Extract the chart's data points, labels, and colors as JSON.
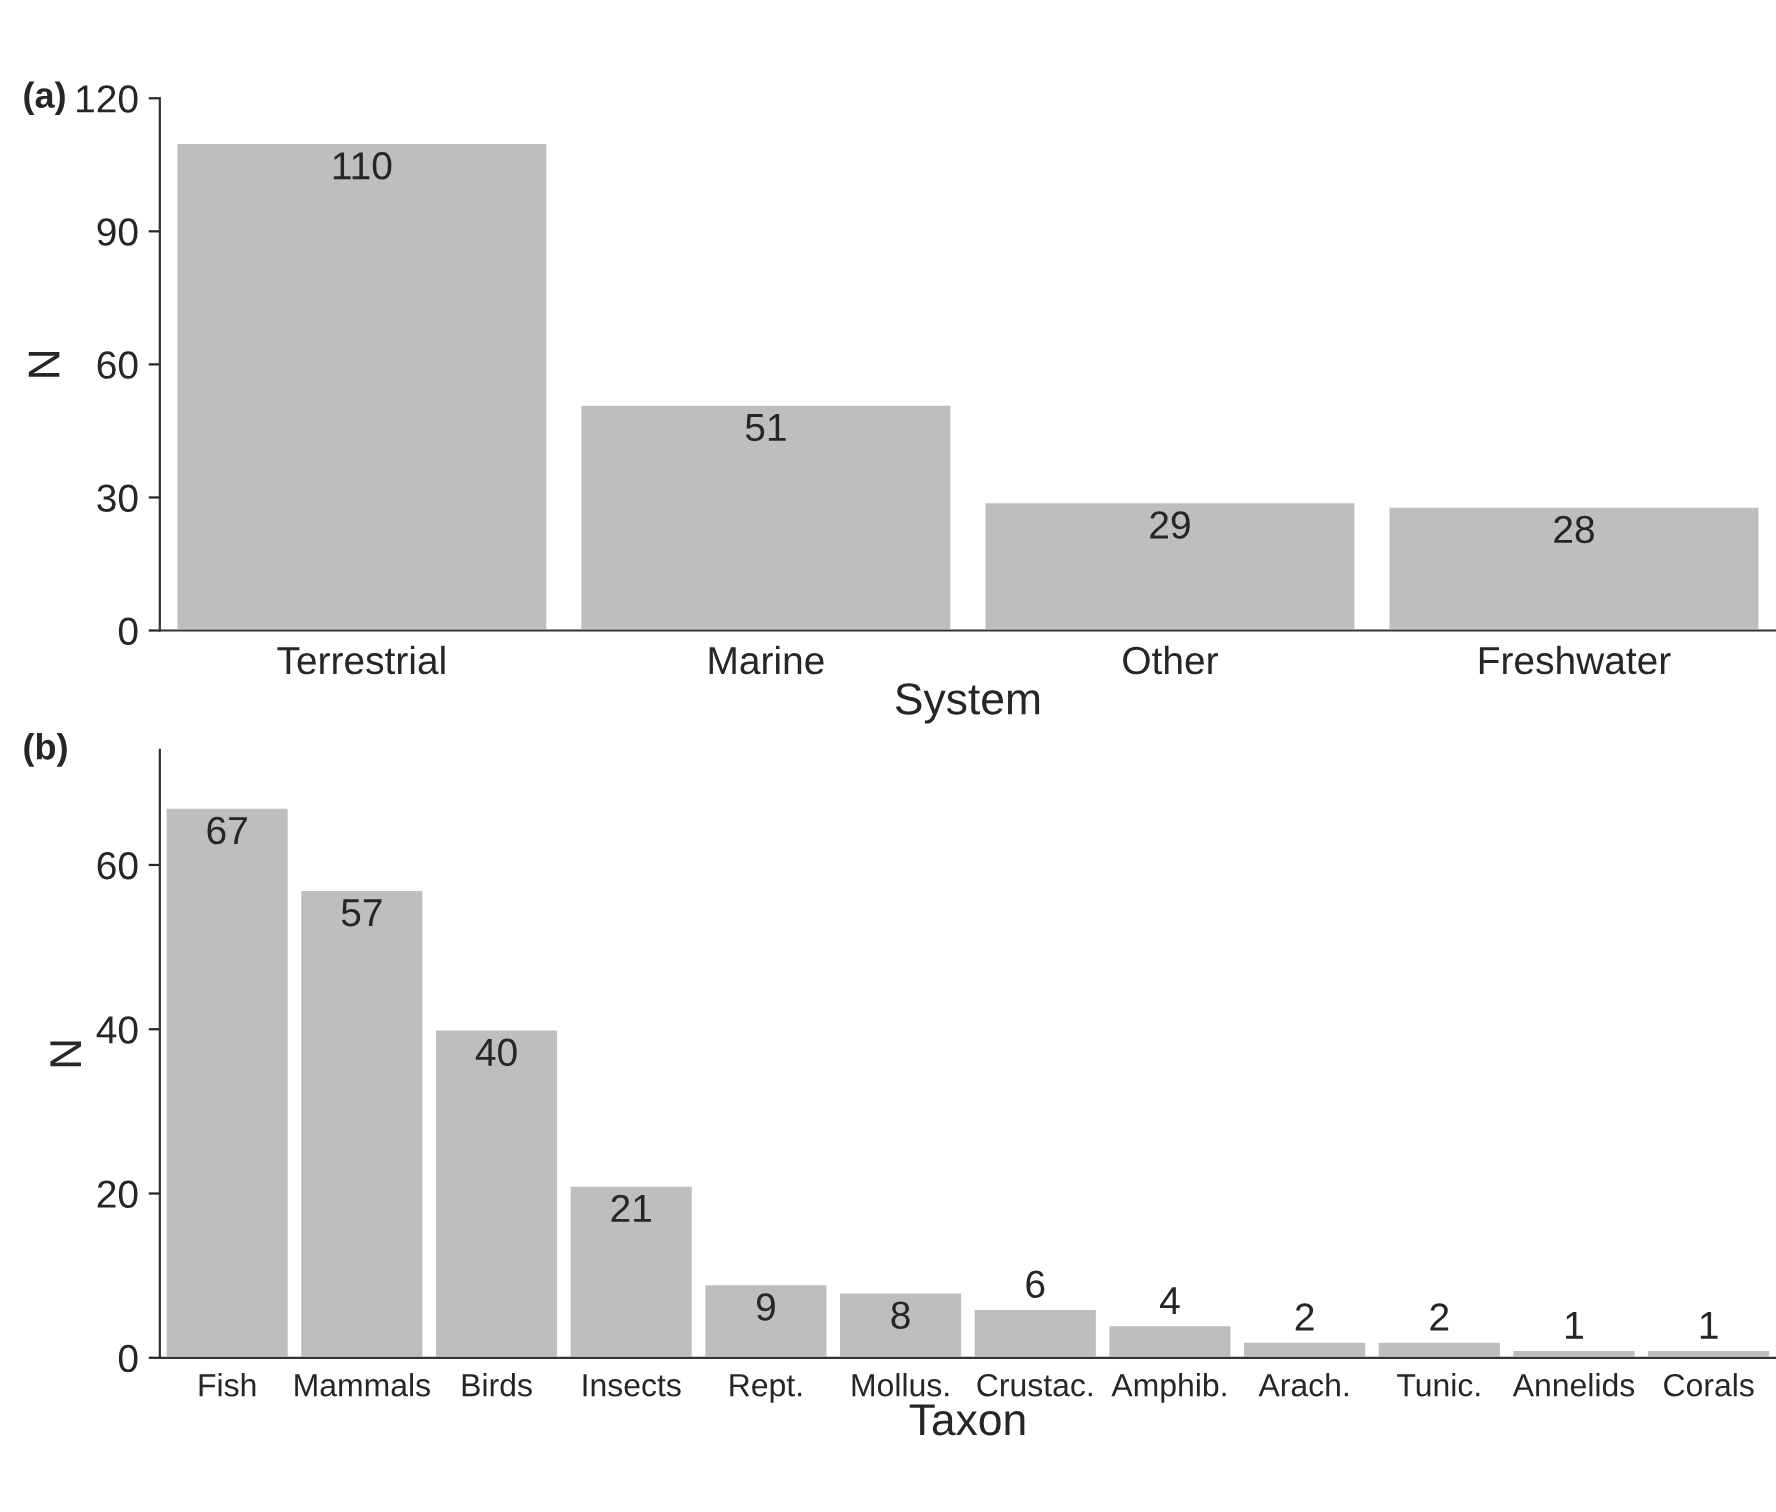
{
  "chart_data": [
    {
      "type": "bar",
      "categories": [
        "Terrestrial",
        "Marine",
        "Other",
        "Freshwater"
      ],
      "values": [
        110,
        51,
        29,
        28
      ],
      "color": "#bebebe",
      "xlabel": "System",
      "ylabel": "N",
      "ylim": [
        0,
        120
      ],
      "yticks": [
        0,
        30,
        60,
        90,
        120
      ],
      "data_labels": true,
      "annotations": [
        "(a)"
      ]
    },
    {
      "type": "bar",
      "categories": [
        "Fish",
        "Mammals",
        "Birds",
        "Insects",
        "Rept.",
        "Mollus.",
        "Crustac.",
        "Amphib.",
        "Arach.",
        "Tunic.",
        "Annelids",
        "Corals"
      ],
      "values": [
        67,
        57,
        40,
        21,
        9,
        8,
        6,
        4,
        2,
        2,
        1,
        1
      ],
      "color": "#bebebe",
      "xlabel": "Taxon",
      "ylabel": "N",
      "ylim": [
        0,
        74
      ],
      "yticks": [
        0,
        20,
        40,
        60
      ],
      "data_labels": true,
      "annotations": [
        "(b)"
      ]
    }
  ]
}
